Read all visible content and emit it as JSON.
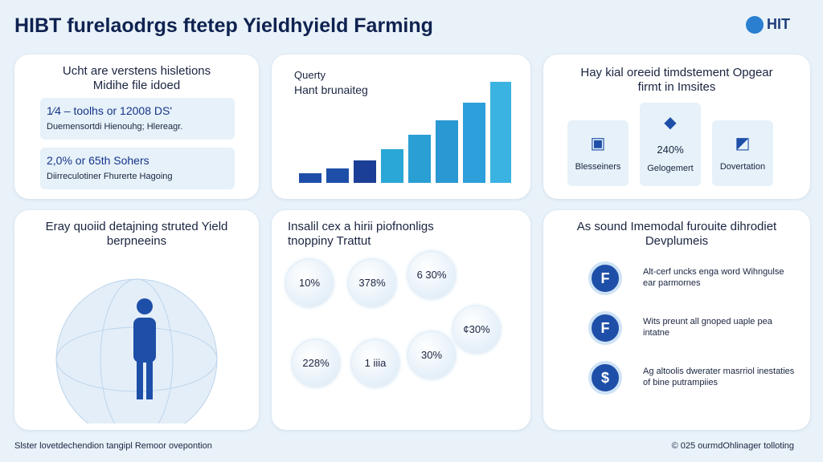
{
  "header": {
    "title": "HIBT furelaodrgs ftetep Yieldhyield Farming",
    "logo": "HIT"
  },
  "panel1": {
    "title": "Ucht are verstens hisletions Midihe file idoed",
    "items": [
      {
        "value": "1⁄4 – toolhs or 12008 DS'",
        "text": "Duemensortdi Hienouhg; Hlereagr."
      },
      {
        "value": "2,0% or 65th Sohers",
        "text": "Diirreculotiner Fhurerte Hagoing"
      }
    ]
  },
  "panel2": {
    "title": "Querty",
    "subtitle": "Hant brunaiteg"
  },
  "panel3": {
    "title": "Hay kial oreeid timdstement Opgear firmt in Imsites",
    "tiles": [
      {
        "label": "Blesseiners"
      },
      {
        "value": "240%",
        "label": "Gelogemert"
      },
      {
        "label": "Dovertation"
      }
    ]
  },
  "panel4": {
    "title": "Eray quoiid detajning struted Yield berpneeins"
  },
  "panel5": {
    "title": "Insalil cex a hirii piofnonligs tnoppiny Trattut",
    "bubbles": [
      "10%",
      "378%",
      "6 30%",
      "¢30%",
      "228%",
      "1 iiia",
      "30%"
    ]
  },
  "panel6": {
    "title": "As sound Imemodal furouite dihrodiet Devplumeis",
    "items": [
      {
        "icon": "F",
        "text": "Alt-cerf uncks enga word Wihngulse ear parmornes"
      },
      {
        "icon": "F",
        "text": "Wits preunt all gnoped uaple pea intatne"
      },
      {
        "icon": "$",
        "text": "Ag altoolis dwerater masrriol inestaties of bine putrampiies"
      }
    ]
  },
  "footer": {
    "left": "Slster lovetdechendion tangipl Remoor ovepontion",
    "right": "© 025 ourmdOhlinager tolloting"
  }
}
